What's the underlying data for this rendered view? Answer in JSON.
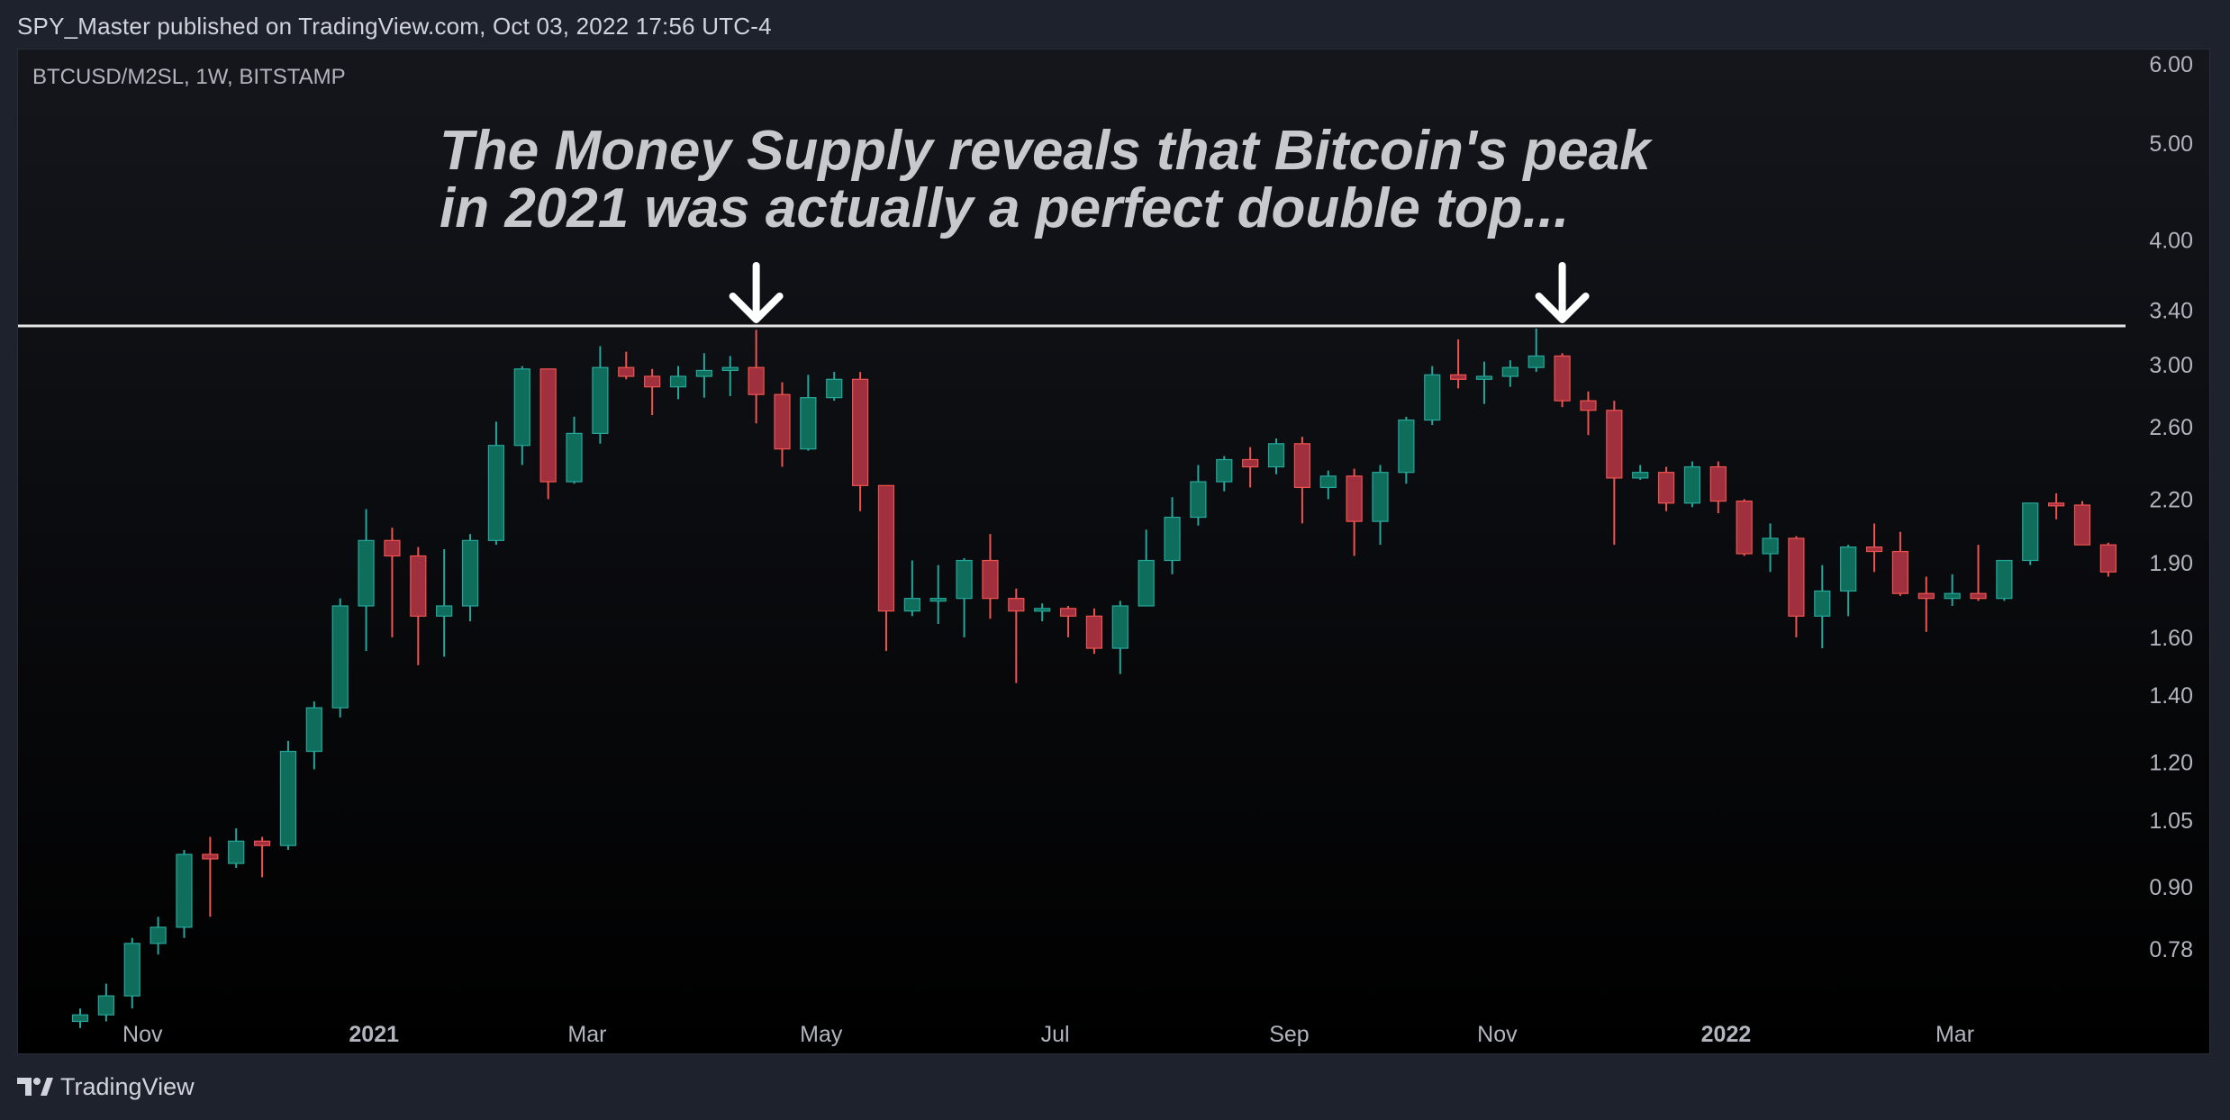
{
  "header": {
    "published_line": "SPY_Master published on TradingView.com, Oct 03, 2022 17:56 UTC-4"
  },
  "footer": {
    "brand": "TradingView"
  },
  "colors": {
    "background_top": "#14161c",
    "background_bottom": "#000000",
    "up": "#0f6e5b",
    "up_border": "#26a69a",
    "down": "#a0303e",
    "down_border": "#ef5350",
    "axis_text": "#b2b5be",
    "annotation_text": "#c8c9cc",
    "resistance_line": "#e6e6e6"
  },
  "chart_data": {
    "type": "candlestick",
    "symbol_label": "BTCUSD/M2SL, 1W, BITSTAMP",
    "annotation": {
      "lines": [
        "The Money Supply reveals that Bitcoin's peak",
        "in 2021 was actually a perfect double top..."
      ]
    },
    "resistance_level": 3.28,
    "peak_arrow_candle_indices": [
      26,
      57
    ],
    "y_scale": "log",
    "y_range": [
      0.68,
      6.2
    ],
    "y_ticks": [
      6.0,
      5.0,
      4.0,
      3.4,
      3.0,
      2.6,
      2.2,
      1.9,
      1.6,
      1.4,
      1.2,
      1.05,
      0.9,
      0.78
    ],
    "y_tick_labels": [
      "6.00",
      "5.00",
      "4.00",
      "3.40",
      "3.00",
      "2.60",
      "2.20",
      "1.90",
      "1.60",
      "1.40",
      "1.20",
      "1.05",
      "0.90",
      "0.78"
    ],
    "x_labels": [
      {
        "label": "Nov",
        "candle_index": 2.4,
        "bold": false
      },
      {
        "label": "2021",
        "candle_index": 11.3,
        "bold": true
      },
      {
        "label": "Mar",
        "candle_index": 19.5,
        "bold": false
      },
      {
        "label": "May",
        "candle_index": 28.5,
        "bold": false
      },
      {
        "label": "Jul",
        "candle_index": 37.5,
        "bold": false
      },
      {
        "label": "Sep",
        "candle_index": 46.5,
        "bold": false
      },
      {
        "label": "Nov",
        "candle_index": 54.5,
        "bold": false
      },
      {
        "label": "2022",
        "candle_index": 63.3,
        "bold": true
      },
      {
        "label": "Mar",
        "candle_index": 72.1,
        "bold": false
      }
    ],
    "candles": [
      {
        "o": 0.66,
        "h": 0.68,
        "l": 0.65,
        "c": 0.67
      },
      {
        "o": 0.67,
        "h": 0.72,
        "l": 0.66,
        "c": 0.7
      },
      {
        "o": 0.7,
        "h": 0.8,
        "l": 0.68,
        "c": 0.79
      },
      {
        "o": 0.79,
        "h": 0.84,
        "l": 0.77,
        "c": 0.82
      },
      {
        "o": 0.82,
        "h": 0.98,
        "l": 0.8,
        "c": 0.97
      },
      {
        "o": 0.97,
        "h": 1.01,
        "l": 0.84,
        "c": 0.96
      },
      {
        "o": 0.95,
        "h": 1.03,
        "l": 0.94,
        "c": 1.0
      },
      {
        "o": 1.0,
        "h": 1.01,
        "l": 0.92,
        "c": 0.99
      },
      {
        "o": 0.99,
        "h": 1.26,
        "l": 0.98,
        "c": 1.23
      },
      {
        "o": 1.23,
        "h": 1.38,
        "l": 1.18,
        "c": 1.36
      },
      {
        "o": 1.36,
        "h": 1.75,
        "l": 1.33,
        "c": 1.72
      },
      {
        "o": 1.72,
        "h": 2.15,
        "l": 1.55,
        "c": 2.0
      },
      {
        "o": 2.0,
        "h": 2.06,
        "l": 1.6,
        "c": 1.93
      },
      {
        "o": 1.93,
        "h": 1.97,
        "l": 1.5,
        "c": 1.68
      },
      {
        "o": 1.68,
        "h": 1.96,
        "l": 1.53,
        "c": 1.72
      },
      {
        "o": 1.72,
        "h": 2.03,
        "l": 1.66,
        "c": 2.0
      },
      {
        "o": 2.0,
        "h": 2.63,
        "l": 1.98,
        "c": 2.49
      },
      {
        "o": 2.49,
        "h": 2.99,
        "l": 2.38,
        "c": 2.97
      },
      {
        "o": 2.97,
        "h": 2.97,
        "l": 2.2,
        "c": 2.29
      },
      {
        "o": 2.29,
        "h": 2.66,
        "l": 2.28,
        "c": 2.56
      },
      {
        "o": 2.56,
        "h": 3.13,
        "l": 2.5,
        "c": 2.98
      },
      {
        "o": 2.98,
        "h": 3.09,
        "l": 2.9,
        "c": 2.92
      },
      {
        "o": 2.92,
        "h": 2.97,
        "l": 2.67,
        "c": 2.85
      },
      {
        "o": 2.85,
        "h": 2.99,
        "l": 2.77,
        "c": 2.92
      },
      {
        "o": 2.92,
        "h": 3.08,
        "l": 2.78,
        "c": 2.96
      },
      {
        "o": 2.96,
        "h": 3.06,
        "l": 2.79,
        "c": 2.98
      },
      {
        "o": 2.98,
        "h": 3.25,
        "l": 2.62,
        "c": 2.8
      },
      {
        "o": 2.8,
        "h": 2.88,
        "l": 2.37,
        "c": 2.47
      },
      {
        "o": 2.47,
        "h": 2.93,
        "l": 2.46,
        "c": 2.78
      },
      {
        "o": 2.78,
        "h": 2.95,
        "l": 2.76,
        "c": 2.9
      },
      {
        "o": 2.9,
        "h": 2.95,
        "l": 2.14,
        "c": 2.27
      },
      {
        "o": 2.27,
        "h": 2.27,
        "l": 1.55,
        "c": 1.7
      },
      {
        "o": 1.7,
        "h": 1.91,
        "l": 1.68,
        "c": 1.75
      },
      {
        "o": 1.75,
        "h": 1.89,
        "l": 1.65,
        "c": 1.75
      },
      {
        "o": 1.75,
        "h": 1.92,
        "l": 1.6,
        "c": 1.91
      },
      {
        "o": 1.91,
        "h": 2.03,
        "l": 1.67,
        "c": 1.75
      },
      {
        "o": 1.75,
        "h": 1.79,
        "l": 1.44,
        "c": 1.7
      },
      {
        "o": 1.7,
        "h": 1.73,
        "l": 1.66,
        "c": 1.71
      },
      {
        "o": 1.71,
        "h": 1.72,
        "l": 1.6,
        "c": 1.68
      },
      {
        "o": 1.68,
        "h": 1.71,
        "l": 1.54,
        "c": 1.56
      },
      {
        "o": 1.56,
        "h": 1.74,
        "l": 1.47,
        "c": 1.72
      },
      {
        "o": 1.72,
        "h": 2.05,
        "l": 1.72,
        "c": 1.91
      },
      {
        "o": 1.91,
        "h": 2.21,
        "l": 1.85,
        "c": 2.11
      },
      {
        "o": 2.11,
        "h": 2.38,
        "l": 2.07,
        "c": 2.29
      },
      {
        "o": 2.29,
        "h": 2.43,
        "l": 2.24,
        "c": 2.41
      },
      {
        "o": 2.41,
        "h": 2.48,
        "l": 2.26,
        "c": 2.37
      },
      {
        "o": 2.37,
        "h": 2.53,
        "l": 2.33,
        "c": 2.5
      },
      {
        "o": 2.5,
        "h": 2.54,
        "l": 2.08,
        "c": 2.26
      },
      {
        "o": 2.26,
        "h": 2.35,
        "l": 2.2,
        "c": 2.32
      },
      {
        "o": 2.32,
        "h": 2.36,
        "l": 1.93,
        "c": 2.09
      },
      {
        "o": 2.09,
        "h": 2.38,
        "l": 1.98,
        "c": 2.34
      },
      {
        "o": 2.34,
        "h": 2.66,
        "l": 2.28,
        "c": 2.64
      },
      {
        "o": 2.64,
        "h": 2.99,
        "l": 2.61,
        "c": 2.93
      },
      {
        "o": 2.93,
        "h": 3.18,
        "l": 2.84,
        "c": 2.9
      },
      {
        "o": 2.9,
        "h": 3.02,
        "l": 2.74,
        "c": 2.92
      },
      {
        "o": 2.92,
        "h": 3.03,
        "l": 2.85,
        "c": 2.98
      },
      {
        "o": 2.98,
        "h": 3.26,
        "l": 2.95,
        "c": 3.06
      },
      {
        "o": 3.06,
        "h": 3.08,
        "l": 2.72,
        "c": 2.76
      },
      {
        "o": 2.76,
        "h": 2.82,
        "l": 2.55,
        "c": 2.7
      },
      {
        "o": 2.7,
        "h": 2.76,
        "l": 1.98,
        "c": 2.31
      },
      {
        "o": 2.31,
        "h": 2.38,
        "l": 2.3,
        "c": 2.34
      },
      {
        "o": 2.34,
        "h": 2.37,
        "l": 2.14,
        "c": 2.18
      },
      {
        "o": 2.18,
        "h": 2.4,
        "l": 2.16,
        "c": 2.37
      },
      {
        "o": 2.37,
        "h": 2.4,
        "l": 2.13,
        "c": 2.19
      },
      {
        "o": 2.19,
        "h": 2.2,
        "l": 1.93,
        "c": 1.94
      },
      {
        "o": 1.94,
        "h": 2.08,
        "l": 1.86,
        "c": 2.01
      },
      {
        "o": 2.01,
        "h": 2.02,
        "l": 1.6,
        "c": 1.68
      },
      {
        "o": 1.68,
        "h": 1.89,
        "l": 1.56,
        "c": 1.78
      },
      {
        "o": 1.78,
        "h": 1.98,
        "l": 1.68,
        "c": 1.97
      },
      {
        "o": 1.97,
        "h": 2.08,
        "l": 1.86,
        "c": 1.95
      },
      {
        "o": 1.95,
        "h": 2.04,
        "l": 1.76,
        "c": 1.77
      },
      {
        "o": 1.77,
        "h": 1.84,
        "l": 1.62,
        "c": 1.75
      },
      {
        "o": 1.75,
        "h": 1.85,
        "l": 1.72,
        "c": 1.77
      },
      {
        "o": 1.77,
        "h": 1.98,
        "l": 1.74,
        "c": 1.75
      },
      {
        "o": 1.75,
        "h": 1.91,
        "l": 1.74,
        "c": 1.91
      },
      {
        "o": 1.91,
        "h": 2.18,
        "l": 1.89,
        "c": 2.18
      },
      {
        "o": 2.18,
        "h": 2.23,
        "l": 2.1,
        "c": 2.17
      },
      {
        "o": 2.17,
        "h": 2.19,
        "l": 1.98,
        "c": 1.98
      },
      {
        "o": 1.98,
        "h": 1.99,
        "l": 1.84,
        "c": 1.86
      }
    ]
  }
}
